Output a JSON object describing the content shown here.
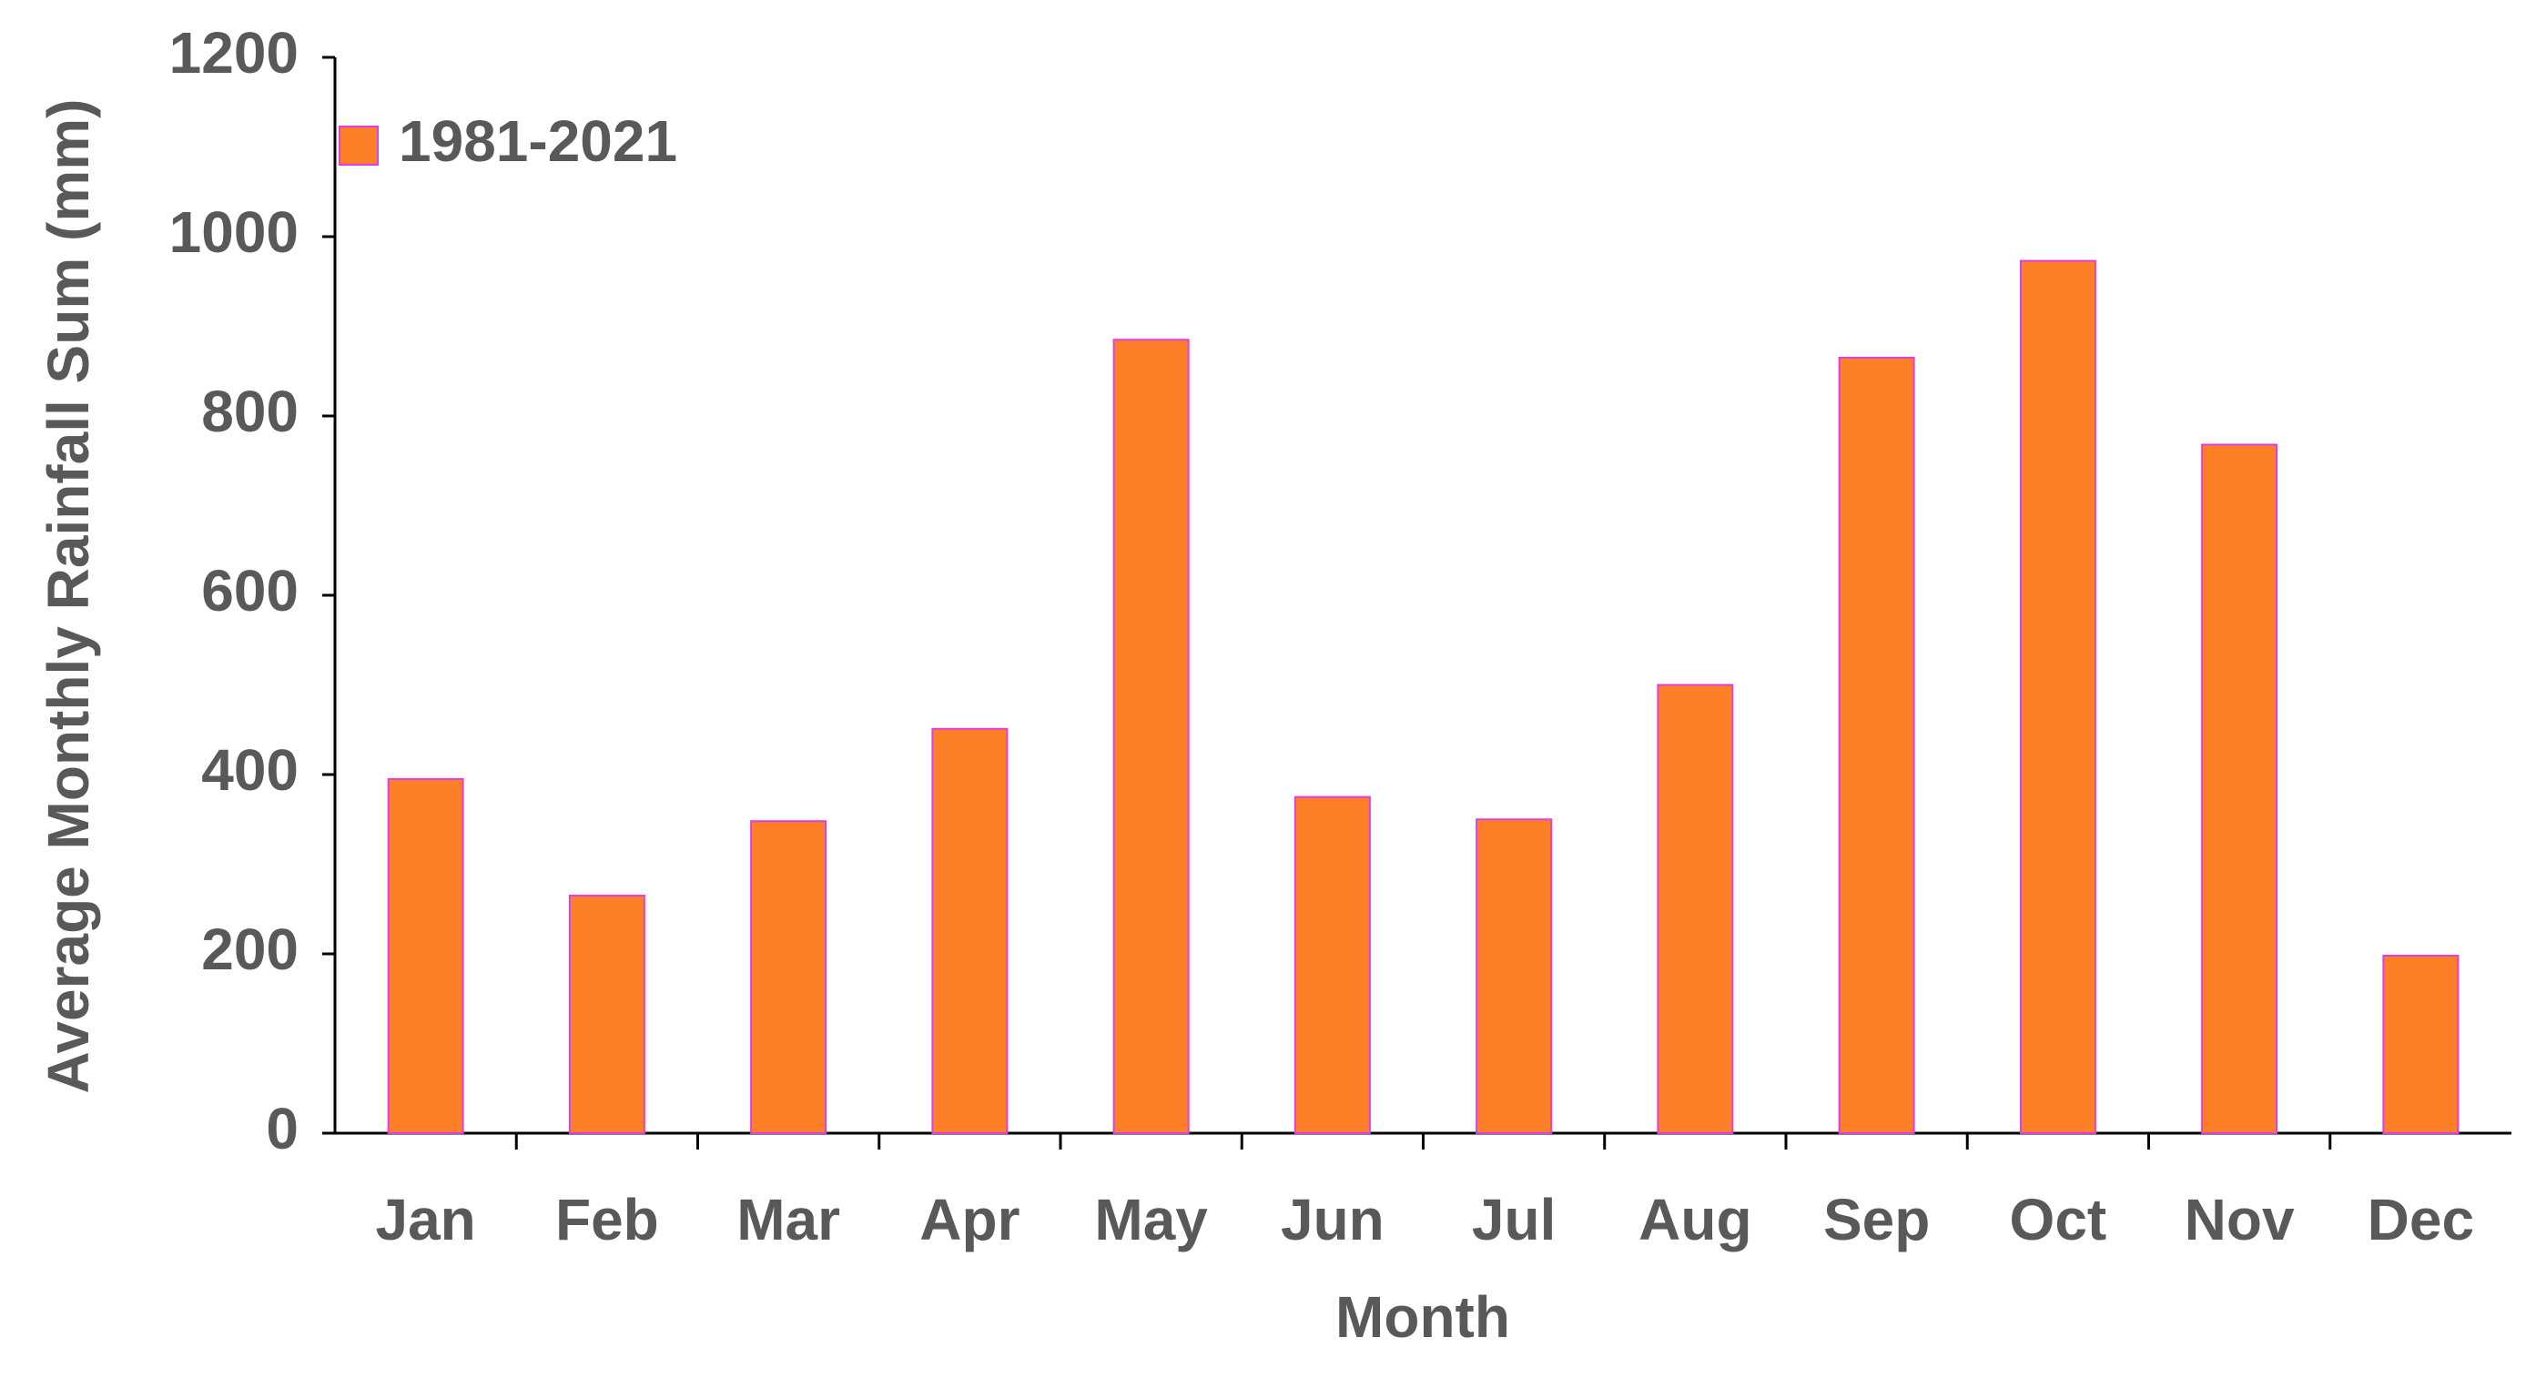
{
  "chart_data": {
    "type": "bar",
    "x_label": "Month",
    "y_label": "Average Monthly Rainfall Sum (mm)",
    "categories": [
      "Jan",
      "Feb",
      "Mar",
      "Apr",
      "May",
      "Jun",
      "Jul",
      "Aug",
      "Sep",
      "Oct",
      "Nov",
      "Dec"
    ],
    "series": [
      {
        "name": "1981-2021",
        "color": "#fd7f28",
        "values": [
          395,
          265,
          348,
          451,
          885,
          375,
          350,
          500,
          865,
          973,
          768,
          198
        ]
      }
    ],
    "ylim": [
      0,
      1200
    ],
    "yticks": [
      0,
      200,
      400,
      600,
      800,
      1000,
      1200
    ],
    "grid": false,
    "legend": "upper left"
  }
}
